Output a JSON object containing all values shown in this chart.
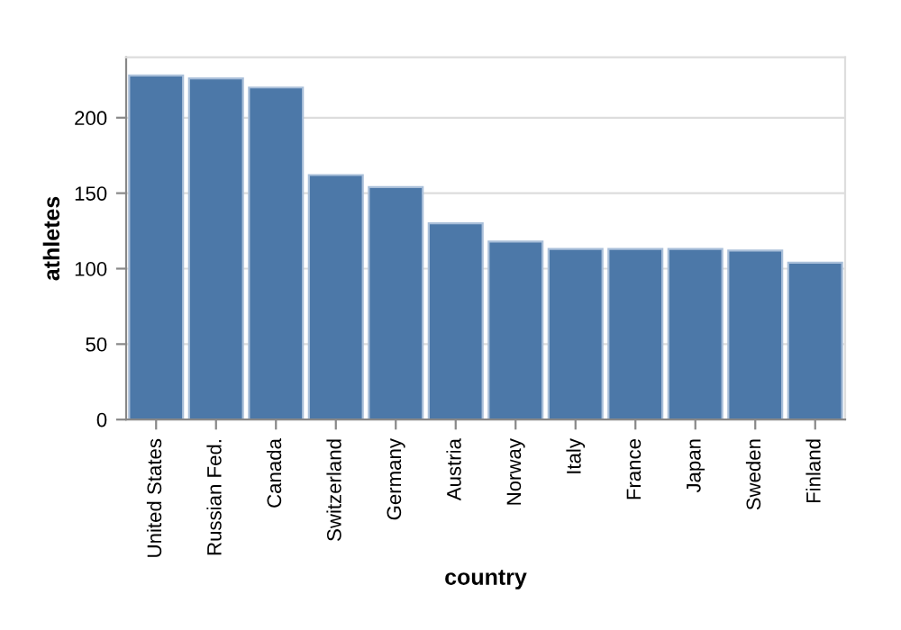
{
  "chart_data": {
    "type": "bar",
    "xlabel": "country",
    "ylabel": "athletes",
    "categories": [
      "United States",
      "Russian Fed.",
      "Canada",
      "Switzerland",
      "Germany",
      "Austria",
      "Norway",
      "Italy",
      "France",
      "Japan",
      "Sweden",
      "Finland"
    ],
    "values": [
      228,
      226,
      220,
      162,
      154,
      130,
      118,
      113,
      113,
      113,
      112,
      104
    ],
    "color": "#4c78a8",
    "ylim": [
      0,
      240
    ],
    "yticks": [
      0,
      50,
      100,
      150,
      200
    ],
    "grid": "y",
    "legend": false
  }
}
